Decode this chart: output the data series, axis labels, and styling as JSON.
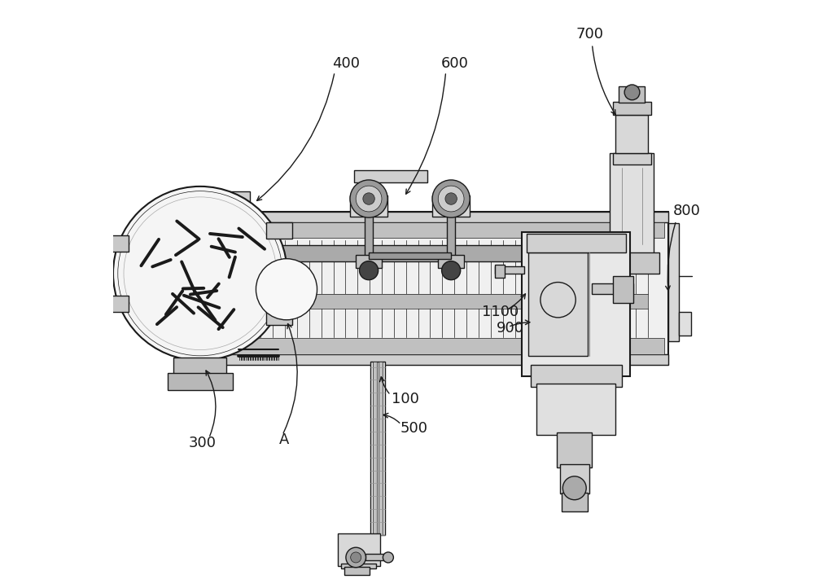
{
  "bg_color": "#ffffff",
  "line_color": "#1a1a1a",
  "dark_color": "#2a2a2a",
  "mid_color": "#555555",
  "light_color": "#888888",
  "fill_light": "#e8e8e8",
  "fill_mid": "#cccccc"
}
